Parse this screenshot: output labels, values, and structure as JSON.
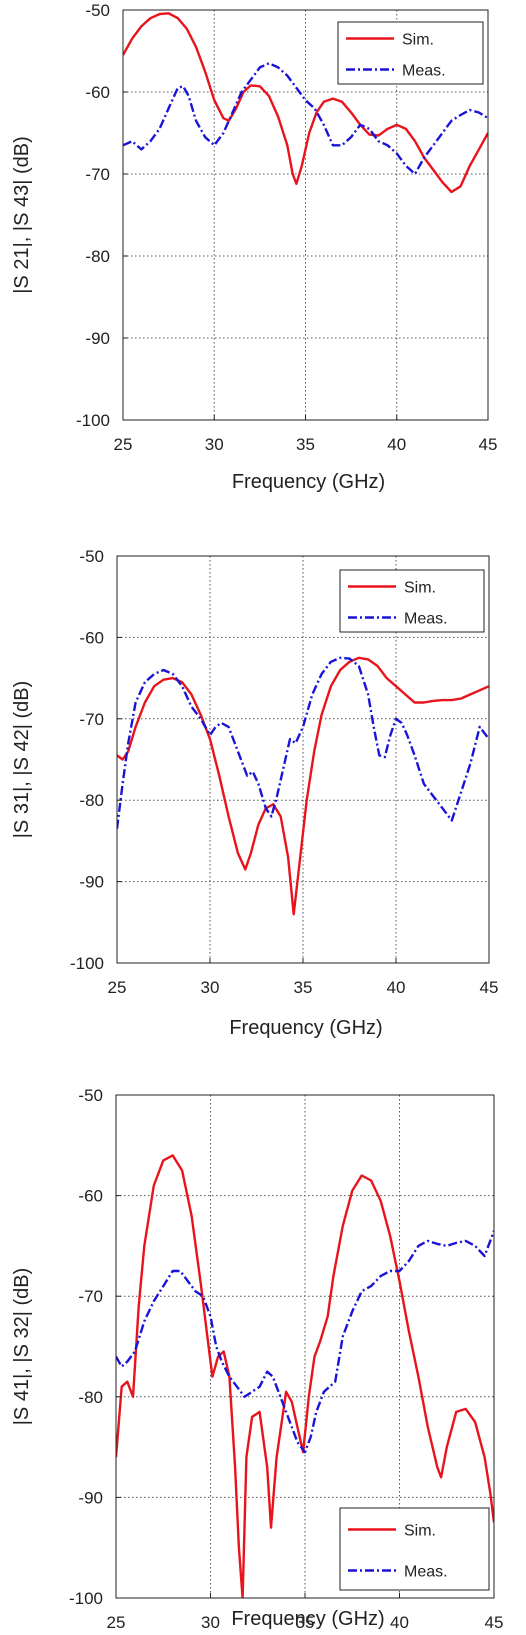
{
  "colors": {
    "sim": "#e8141c",
    "meas": "#1a14d8",
    "grid": "#555555",
    "axis": "#222222"
  },
  "chart_data": [
    {
      "type": "line",
      "xlabel": "Frequency (GHz)",
      "ylabel": "|S 21|, |S 43| (dB)",
      "xlim": [
        25,
        45
      ],
      "ylim": [
        -100,
        -50
      ],
      "xticks": [
        25,
        30,
        35,
        40,
        45
      ],
      "yticks": [
        -50,
        -60,
        -70,
        -80,
        -90,
        -100
      ],
      "grid": true,
      "legend_position": "top-right",
      "series": [
        {
          "name": "Sim.",
          "style": "solid",
          "color": "sim",
          "x": [
            25,
            25.5,
            26,
            26.5,
            27,
            27.5,
            28,
            28.5,
            29,
            29.5,
            30,
            30.5,
            30.8,
            31.2,
            31.6,
            32,
            32.5,
            33,
            33.5,
            34,
            34.3,
            34.5,
            34.8,
            35.2,
            35.6,
            36,
            36.5,
            37,
            37.5,
            38,
            38.5,
            39,
            39.5,
            40,
            40.5,
            41,
            41.5,
            42,
            42.5,
            43,
            43.5,
            44,
            44.5,
            45
          ],
          "y": [
            -55.5,
            -53.5,
            -52,
            -51,
            -50.5,
            -50.4,
            -51,
            -52.3,
            -54.5,
            -57.5,
            -61,
            -63.2,
            -63.5,
            -62,
            -60,
            -59.2,
            -59.3,
            -60.5,
            -63,
            -66.5,
            -70,
            -71.2,
            -69,
            -65,
            -62.5,
            -61.2,
            -60.8,
            -61.2,
            -62.5,
            -64,
            -65.2,
            -65.3,
            -64.5,
            -64,
            -64.5,
            -66,
            -68,
            -69.5,
            -71,
            -72.2,
            -71.5,
            -69,
            -67,
            -65
          ]
        },
        {
          "name": "Meas.",
          "style": "dashdot",
          "color": "meas",
          "x": [
            25,
            25.5,
            26,
            26.5,
            27,
            27.5,
            28,
            28.3,
            28.6,
            29,
            29.5,
            30,
            30.5,
            31,
            31.5,
            32,
            32.5,
            33,
            33.5,
            34,
            34.5,
            35,
            35.5,
            36,
            36.5,
            37,
            37.5,
            38,
            38.5,
            39,
            39.5,
            40,
            40.5,
            41,
            41.5,
            42,
            42.5,
            43,
            43.5,
            44,
            44.5,
            45
          ],
          "y": [
            -66.5,
            -66,
            -67,
            -66,
            -64.5,
            -62,
            -59.5,
            -59.3,
            -60.5,
            -63.5,
            -65.5,
            -66.5,
            -65,
            -62.5,
            -60,
            -58.5,
            -57,
            -56.5,
            -57,
            -58,
            -59.5,
            -61,
            -62,
            -64,
            -66.5,
            -66.5,
            -65.5,
            -64,
            -64.5,
            -66,
            -66.5,
            -67.5,
            -69,
            -70,
            -68,
            -66.5,
            -65,
            -63.5,
            -62.8,
            -62.2,
            -62.5,
            -63.2
          ]
        }
      ]
    },
    {
      "type": "line",
      "xlabel": "Frequency (GHz)",
      "ylabel": "|S 31|, |S 42| (dB)",
      "xlim": [
        25,
        45
      ],
      "ylim": [
        -100,
        -50
      ],
      "xticks": [
        25,
        30,
        35,
        40,
        45
      ],
      "yticks": [
        -50,
        -60,
        -70,
        -80,
        -90,
        -100
      ],
      "grid": true,
      "legend_position": "top-right",
      "series": [
        {
          "name": "Sim.",
          "style": "solid",
          "color": "sim",
          "x": [
            25,
            25.3,
            25.6,
            26,
            26.5,
            27,
            27.5,
            28,
            28.5,
            29,
            29.5,
            30,
            30.5,
            31,
            31.5,
            31.9,
            32.2,
            32.6,
            33,
            33.4,
            33.8,
            34.2,
            34.5,
            34.8,
            35.2,
            35.6,
            36,
            36.5,
            37,
            37.5,
            38,
            38.5,
            39,
            39.5,
            40,
            40.5,
            41,
            41.5,
            42,
            42.5,
            43,
            43.5,
            44,
            44.5,
            45
          ],
          "y": [
            -74.5,
            -75,
            -74,
            -71,
            -68,
            -66,
            -65.2,
            -65,
            -65.5,
            -67,
            -69.5,
            -72.5,
            -77,
            -82,
            -86.5,
            -88.5,
            -86.5,
            -83,
            -81,
            -80.5,
            -82,
            -87,
            -94,
            -88,
            -80,
            -74,
            -69.5,
            -66,
            -64,
            -63,
            -62.5,
            -62.7,
            -63.5,
            -65,
            -66,
            -67,
            -68,
            -68,
            -67.8,
            -67.7,
            -67.7,
            -67.5,
            -67,
            -66.5,
            -66
          ]
        },
        {
          "name": "Meas.",
          "style": "dashdot",
          "color": "meas",
          "x": [
            25,
            25.3,
            25.6,
            26,
            26.5,
            27,
            27.5,
            28,
            28.5,
            29,
            29.5,
            30,
            30.3,
            30.6,
            31,
            31.5,
            32,
            32.3,
            32.6,
            33,
            33.3,
            33.6,
            34,
            34.3,
            34.6,
            35,
            35.5,
            36,
            36.5,
            37,
            37.5,
            38,
            38.5,
            38.8,
            39.1,
            39.4,
            39.7,
            40,
            40.3,
            40.6,
            41,
            41.5,
            42,
            42.5,
            43,
            43.5,
            44,
            44.5,
            45
          ],
          "y": [
            -83.5,
            -78,
            -73,
            -68,
            -65.5,
            -64.5,
            -64,
            -64.5,
            -66,
            -68.5,
            -70,
            -72,
            -71,
            -70.5,
            -71,
            -74,
            -77,
            -76.5,
            -78,
            -81,
            -82,
            -79.5,
            -75.5,
            -72.5,
            -73,
            -71,
            -67,
            -64.5,
            -63,
            -62.5,
            -62.6,
            -63.5,
            -67,
            -71,
            -74.5,
            -74.7,
            -72,
            -70,
            -70.5,
            -72,
            -74.5,
            -78,
            -79.5,
            -81,
            -82.5,
            -79,
            -75.5,
            -71,
            -72.5
          ]
        }
      ]
    },
    {
      "type": "line",
      "xlabel": "Frequency (GHz)",
      "ylabel": "|S 41|, |S 32| (dB)",
      "xlim": [
        25,
        45
      ],
      "ylim": [
        -100,
        -50
      ],
      "xticks": [
        25,
        30,
        35,
        40,
        45
      ],
      "yticks": [
        -50,
        -60,
        -70,
        -80,
        -90,
        -100
      ],
      "grid": true,
      "legend_position": "bottom-right",
      "series": [
        {
          "name": "Sim.",
          "style": "solid",
          "color": "sim",
          "x": [
            25,
            25.3,
            25.6,
            25.9,
            26.2,
            26.5,
            27,
            27.5,
            28,
            28.5,
            29,
            29.5,
            29.8,
            30.1,
            30.4,
            30.7,
            31,
            31.3,
            31.5,
            31.7,
            31.9,
            32.2,
            32.6,
            33,
            33.2,
            33.5,
            34,
            34.3,
            34.6,
            34.9,
            35.2,
            35.5,
            35.8,
            36.2,
            36.5,
            37,
            37.5,
            38,
            38.5,
            39,
            39.5,
            40,
            40.5,
            41,
            41.5,
            42,
            42.2,
            42.5,
            43,
            43.5,
            44,
            44.5,
            44.8,
            45
          ],
          "y": [
            -86,
            -79,
            -78.5,
            -80,
            -71,
            -65,
            -59,
            -56.5,
            -56,
            -57.5,
            -62,
            -69,
            -73.5,
            -78,
            -76,
            -75.5,
            -78,
            -87,
            -95,
            -100,
            -86,
            -82,
            -81.5,
            -87,
            -93,
            -86,
            -79.5,
            -80.5,
            -83,
            -85.5,
            -80,
            -76,
            -74.5,
            -72,
            -68,
            -63,
            -59.5,
            -58,
            -58.5,
            -60.5,
            -64,
            -68.5,
            -73.5,
            -78,
            -83,
            -87,
            -88,
            -85,
            -81.5,
            -81.2,
            -82.5,
            -86,
            -89.5,
            -92.5
          ]
        },
        {
          "name": "Meas.",
          "style": "dashdot",
          "color": "meas",
          "x": [
            25,
            25.3,
            25.6,
            26,
            26.5,
            27,
            27.5,
            28,
            28.4,
            28.8,
            29.2,
            29.6,
            30,
            30.3,
            30.6,
            31,
            31.4,
            31.8,
            32.2,
            32.6,
            33,
            33.3,
            33.6,
            34,
            34.3,
            34.6,
            35,
            35.3,
            35.6,
            36,
            36.3,
            36.6,
            37,
            37.5,
            38,
            38.5,
            39,
            39.5,
            40,
            40.5,
            41,
            41.5,
            42,
            42.5,
            43,
            43.5,
            44,
            44.5,
            45
          ],
          "y": [
            -76,
            -77,
            -76.5,
            -75.5,
            -72.5,
            -70.5,
            -69,
            -67.5,
            -67.5,
            -68.5,
            -69.5,
            -70,
            -72,
            -75,
            -76.5,
            -78,
            -79,
            -80,
            -79.5,
            -79,
            -77.5,
            -78,
            -79.5,
            -81.5,
            -83,
            -84.5,
            -85.5,
            -84,
            -81.5,
            -79.5,
            -79,
            -78.5,
            -74,
            -71.5,
            -69.5,
            -69,
            -68,
            -67.5,
            -67.5,
            -66.5,
            -65,
            -64.5,
            -64.8,
            -65,
            -64.7,
            -64.5,
            -65,
            -66,
            -63.5
          ]
        }
      ]
    }
  ]
}
